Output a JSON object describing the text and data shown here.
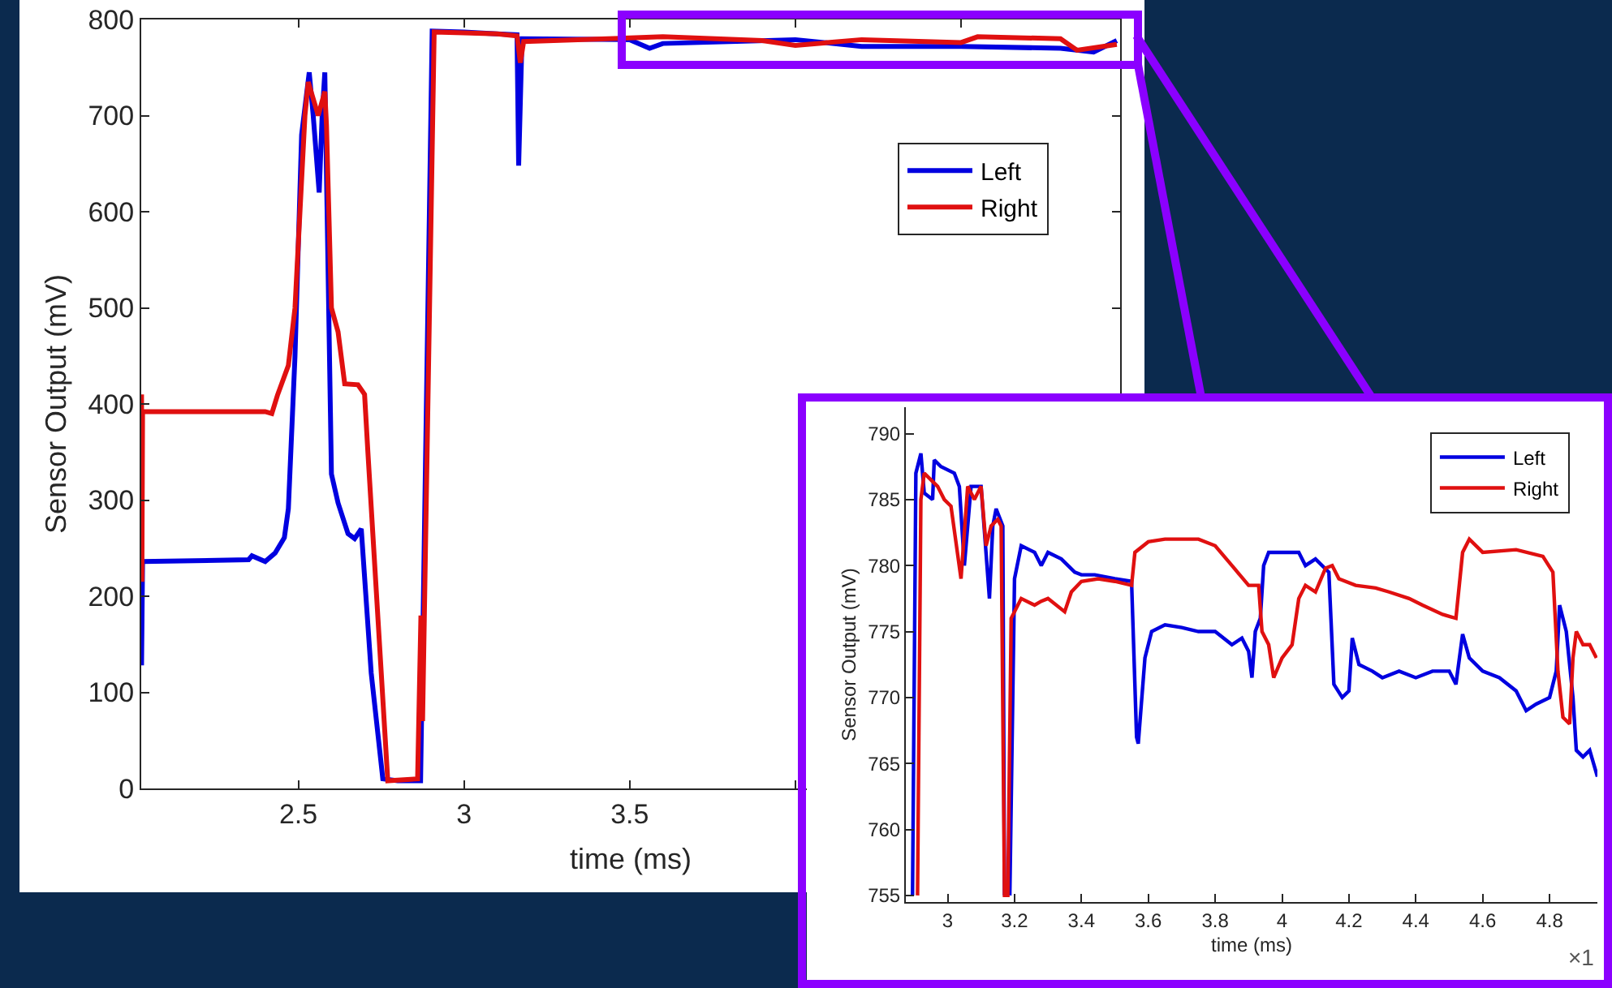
{
  "chart_data": [
    {
      "type": "line",
      "xlabel": "time (ms)",
      "ylabel": "Sensor Output (mV)",
      "xlim": [
        2.026,
        4.98
      ],
      "ylim": [
        0,
        800
      ],
      "xticks": [
        2.5,
        3,
        3.5,
        {
          "value": 4,
          "label": null
        },
        {
          "value": 4.5,
          "label": null
        }
      ],
      "yticks": [
        0,
        100,
        200,
        300,
        400,
        500,
        600,
        700,
        800
      ],
      "grid": false,
      "legend": "top right",
      "marker": "none",
      "line_style": "solid",
      "series": [
        {
          "name": "Left",
          "color": "#0000e0",
          "x": [
            2.027,
            2.03,
            2.35,
            2.36,
            2.4,
            2.43,
            2.458,
            2.47,
            2.49,
            2.51,
            2.533,
            2.545,
            2.563,
            2.572,
            2.58,
            2.6,
            2.62,
            2.65,
            2.67,
            2.69,
            2.72,
            2.755,
            2.8,
            2.869,
            2.904,
            3.0,
            3.1,
            3.16,
            3.165,
            3.175,
            3.5,
            3.56,
            3.6,
            4.0,
            4.2,
            4.5,
            4.8,
            4.9,
            4.97
          ],
          "values": [
            128,
            236,
            238,
            242,
            236,
            245,
            261,
            291,
            450,
            680,
            745,
            700,
            620,
            700,
            745,
            327,
            297,
            265,
            260,
            270,
            120,
            10,
            8,
            8,
            788,
            787,
            785,
            784,
            648,
            780,
            779,
            770,
            775,
            779,
            772,
            772,
            770,
            766,
            778
          ]
        },
        {
          "name": "Right",
          "color": "#e01010",
          "x": [
            2.027,
            2.028,
            2.03,
            2.4,
            2.42,
            2.437,
            2.47,
            2.49,
            2.52,
            2.53,
            2.56,
            2.58,
            2.585,
            2.6,
            2.62,
            2.64,
            2.68,
            2.7,
            2.71,
            2.77,
            2.86,
            2.87,
            2.875,
            2.91,
            3.0,
            3.1,
            3.16,
            3.17,
            3.18,
            3.6,
            3.9,
            4.0,
            4.2,
            4.5,
            4.55,
            4.8,
            4.85,
            4.97
          ],
          "values": [
            410,
            215,
            392,
            392,
            390,
            409,
            440,
            500,
            700,
            735,
            700,
            725,
            690,
            500,
            475,
            421,
            420,
            410,
            350,
            8,
            10,
            180,
            70,
            787,
            786,
            785,
            783,
            755,
            777,
            782,
            778,
            773,
            779,
            776,
            782,
            780,
            768,
            774
          ]
        }
      ]
    },
    {
      "type": "line",
      "xlabel": "time (ms)",
      "ylabel": "Sensor Output (mV)",
      "xlim": [
        2.875,
        4.943
      ],
      "ylim": [
        754.5,
        792
      ],
      "xticks": [
        3,
        3.2,
        3.4,
        3.6,
        3.8,
        4,
        4.2,
        4.4,
        4.6,
        4.8
      ],
      "yticks": [
        755,
        760,
        765,
        770,
        775,
        780,
        785,
        790
      ],
      "grid": false,
      "legend": "top right",
      "marker": "none",
      "line_style": "solid",
      "annotations": [
        "×1"
      ],
      "series": [
        {
          "name": "Left",
          "color": "#0000e0",
          "x": [
            2.895,
            2.905,
            2.92,
            2.93,
            2.955,
            2.96,
            2.98,
            3.02,
            3.035,
            3.05,
            3.07,
            3.1,
            3.125,
            3.135,
            3.145,
            3.165,
            3.17,
            3.18,
            3.186,
            3.2,
            3.22,
            3.26,
            3.28,
            3.3,
            3.34,
            3.38,
            3.4,
            3.44,
            3.5,
            3.55,
            3.565,
            3.57,
            3.59,
            3.61,
            3.65,
            3.7,
            3.75,
            3.8,
            3.85,
            3.88,
            3.9,
            3.91,
            3.92,
            3.935,
            3.945,
            3.96,
            4.0,
            4.05,
            4.07,
            4.1,
            4.14,
            4.155,
            4.18,
            4.2,
            4.21,
            4.23,
            4.27,
            4.3,
            4.35,
            4.4,
            4.45,
            4.5,
            4.52,
            4.54,
            4.56,
            4.6,
            4.65,
            4.7,
            4.73,
            4.76,
            4.8,
            4.82,
            4.83,
            4.85,
            4.87,
            4.88,
            4.9,
            4.92,
            4.943
          ],
          "values": [
            755,
            787,
            788.5,
            785.5,
            785,
            788,
            787.5,
            787,
            786,
            780,
            786,
            786,
            777.5,
            783,
            784.3,
            783,
            755,
            null,
            755,
            779,
            781.5,
            781,
            780,
            781,
            780.5,
            779.5,
            779.3,
            779.3,
            779,
            778.8,
            767,
            766.5,
            773,
            775,
            775.5,
            775.3,
            775,
            775,
            774,
            774.5,
            773.5,
            771.5,
            775,
            776,
            780,
            781,
            781,
            781,
            780,
            780.5,
            779.5,
            771,
            770,
            770.5,
            774.5,
            772.5,
            772,
            771.5,
            772,
            771.5,
            772,
            772,
            771,
            774.8,
            773,
            772,
            771.5,
            770.5,
            769,
            769.5,
            770,
            772,
            777,
            775,
            770,
            766,
            765.5,
            766,
            764
          ]
        },
        {
          "name": "Right",
          "color": "#e01010",
          "x": [
            2.91,
            2.92,
            2.93,
            2.97,
            2.99,
            3.01,
            3.04,
            3.06,
            3.08,
            3.1,
            3.115,
            3.13,
            3.15,
            3.16,
            3.17,
            3.18,
            3.19,
            3.22,
            3.26,
            3.28,
            3.3,
            3.35,
            3.37,
            3.4,
            3.45,
            3.5,
            3.55,
            3.56,
            3.6,
            3.65,
            3.7,
            3.75,
            3.8,
            3.85,
            3.9,
            3.93,
            3.94,
            3.96,
            3.975,
            4.0,
            4.03,
            4.05,
            4.07,
            4.1,
            4.13,
            4.15,
            4.17,
            4.22,
            4.28,
            4.32,
            4.38,
            4.42,
            4.48,
            4.52,
            4.54,
            4.56,
            4.6,
            4.7,
            4.78,
            4.81,
            4.825,
            4.84,
            4.86,
            4.87,
            4.88,
            4.9,
            4.92,
            4.94
          ],
          "values": [
            755,
            785,
            787,
            786,
            785,
            784.5,
            779,
            786,
            785,
            786,
            781.5,
            783,
            783.5,
            783,
            755,
            755,
            776,
            777.5,
            777,
            777.3,
            777.5,
            776.5,
            778,
            778.8,
            779,
            778.8,
            778.5,
            781,
            781.8,
            782,
            782,
            782,
            781.5,
            780,
            778.5,
            778.5,
            775,
            774,
            771.5,
            773,
            774,
            777.5,
            778.5,
            778,
            779.8,
            780,
            779,
            778.5,
            778.3,
            778,
            777.5,
            777,
            776.3,
            776,
            781,
            782,
            781,
            781.2,
            780.7,
            779.5,
            772,
            768.5,
            768,
            773,
            775,
            774,
            774,
            773
          ]
        }
      ]
    }
  ]
}
